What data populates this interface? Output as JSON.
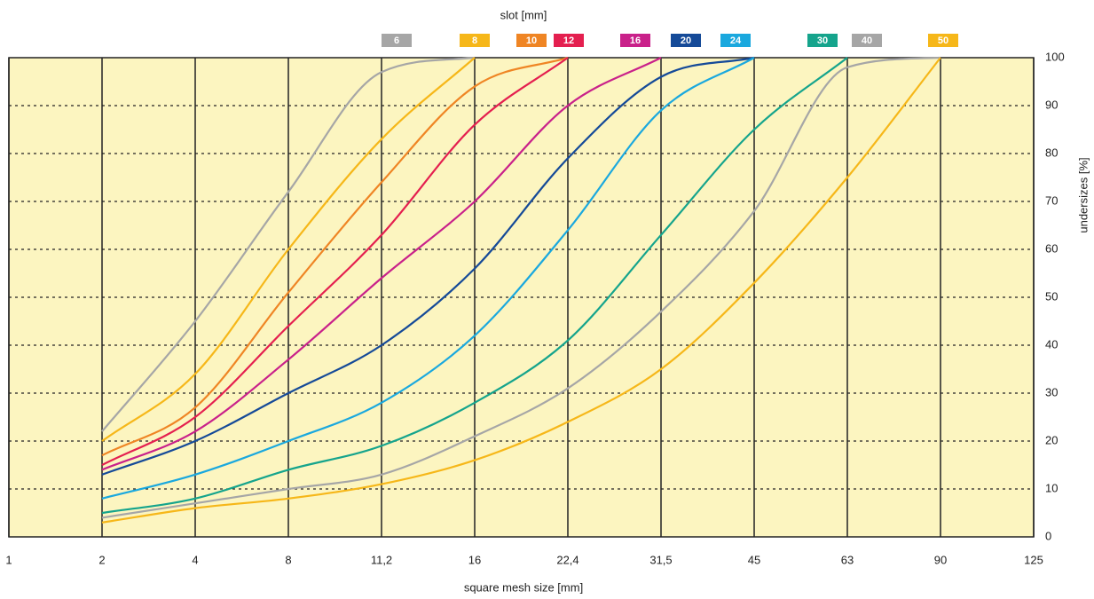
{
  "chart_data": {
    "type": "line",
    "legend_title": "slot [mm]",
    "x_label": "square mesh size [mm]",
    "y_label": "undersizes [%]",
    "categories": [
      "1",
      "2",
      "4",
      "8",
      "11,2",
      "16",
      "22,4",
      "31,5",
      "45",
      "63",
      "90",
      "125"
    ],
    "ylim": [
      0,
      100
    ],
    "yticks": [
      0,
      10,
      20,
      30,
      40,
      50,
      60,
      70,
      80,
      90,
      100
    ],
    "grid": true,
    "background": "#fcf5c0",
    "series": [
      {
        "name": "6",
        "color": "#a6a6a6",
        "values": [
          null,
          22,
          45,
          72,
          97,
          100,
          null,
          null,
          null,
          null,
          null,
          null
        ]
      },
      {
        "name": "8",
        "color": "#f6b719",
        "values": [
          null,
          20,
          34,
          60,
          83,
          100,
          null,
          null,
          null,
          null,
          null,
          null
        ]
      },
      {
        "name": "10",
        "color": "#ef8524",
        "values": [
          null,
          17,
          27,
          51,
          74,
          94,
          100,
          null,
          null,
          null,
          null,
          null
        ]
      },
      {
        "name": "12",
        "color": "#e41f4f",
        "values": [
          null,
          15,
          25,
          44,
          63,
          86,
          100,
          null,
          null,
          null,
          null,
          null
        ]
      },
      {
        "name": "16",
        "color": "#c9218a",
        "values": [
          null,
          14,
          22,
          37,
          54,
          70,
          90,
          100,
          null,
          null,
          null,
          null
        ]
      },
      {
        "name": "20",
        "color": "#154a98",
        "values": [
          null,
          13,
          20,
          30,
          40,
          56,
          79,
          96,
          100,
          null,
          null,
          null
        ]
      },
      {
        "name": "24",
        "color": "#1aa8de",
        "values": [
          null,
          8,
          13,
          20,
          28,
          42,
          64,
          89,
          100,
          null,
          null,
          null
        ]
      },
      {
        "name": "30",
        "color": "#15a48c",
        "values": [
          null,
          5,
          8,
          14,
          19,
          28,
          41,
          63,
          85,
          100,
          null,
          null
        ]
      },
      {
        "name": "40",
        "color": "#a6a6a6",
        "values": [
          null,
          4,
          7,
          10,
          13,
          21,
          31,
          47,
          68,
          98,
          100,
          null
        ]
      },
      {
        "name": "50",
        "color": "#f6b719",
        "values": [
          null,
          3,
          6,
          8,
          11,
          16,
          24,
          35,
          53,
          75,
          100,
          null
        ]
      }
    ]
  }
}
